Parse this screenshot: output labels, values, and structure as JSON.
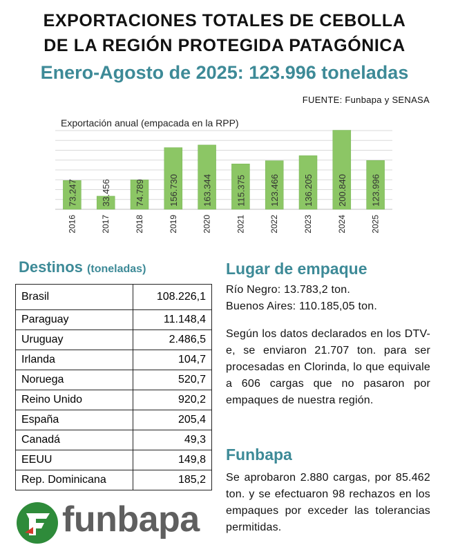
{
  "header": {
    "title_line1": "EXPORTACIONES TOTALES DE CEBOLLA",
    "title_line2": "DE LA REGIÓN PROTEGIDA PATAGÓNICA",
    "subtitle": "Enero-Agosto de 2025: 123.996 toneladas",
    "source": "FUENTE: Funbapa y SENASA"
  },
  "chart_data": {
    "type": "bar",
    "title": "Exportación anual (empacada en la RPP)",
    "categories": [
      "2016",
      "2017",
      "2018",
      "2019",
      "2020",
      "2021",
      "2022",
      "2023",
      "2024",
      "2025"
    ],
    "values": [
      73247,
      33456,
      74789,
      156730,
      163344,
      115375,
      123466,
      136205,
      200840,
      123996
    ],
    "value_labels": [
      "73.247",
      "33.456",
      "74.789",
      "156.730",
      "163.344",
      "115.375",
      "123.466",
      "136.205",
      "200.840",
      "123.996"
    ],
    "ylim": [
      0,
      200000
    ],
    "grid": true,
    "color": "#8cc665"
  },
  "destinos": {
    "heading": "Destinos",
    "heading_unit": "(toneladas)",
    "rows": [
      {
        "country": "Brasil",
        "value": "108.226,1"
      },
      {
        "country": "Paraguay",
        "value": "11.148,4"
      },
      {
        "country": "Uruguay",
        "value": "2.486,5"
      },
      {
        "country": "Irlanda",
        "value": "104,7"
      },
      {
        "country": "Noruega",
        "value": "520,7"
      },
      {
        "country": "Reino Unido",
        "value": "920,2"
      },
      {
        "country": "España",
        "value": "205,4"
      },
      {
        "country": "Canadá",
        "value": "49,3"
      },
      {
        "country": "EEUU",
        "value": "149,8"
      },
      {
        "country": "Rep. Dominicana",
        "value": "185,2"
      }
    ]
  },
  "lugar": {
    "heading": "Lugar de empaque",
    "rio_negro": "Río Negro: 13.783,2 ton.",
    "buenos_aires": "Buenos Aires: 110.185,05 ton.",
    "paragraph": "Según los datos declarados en los DTV-e, se enviaron 21.707 ton. para ser procesadas en Clorinda, lo que equivale a 606 cargas que no pasaron por empaques de nuestra región."
  },
  "funbapa": {
    "heading": "Funbapa",
    "paragraph": "Se aprobaron 2.880 cargas, por 85.462 ton. y se efectuaron 98 rechazos en los empaques por exceder las tolerancias permitidas."
  },
  "logo": {
    "text": "funbapa",
    "green": "#2e8b3a",
    "red": "#d23a2a"
  }
}
